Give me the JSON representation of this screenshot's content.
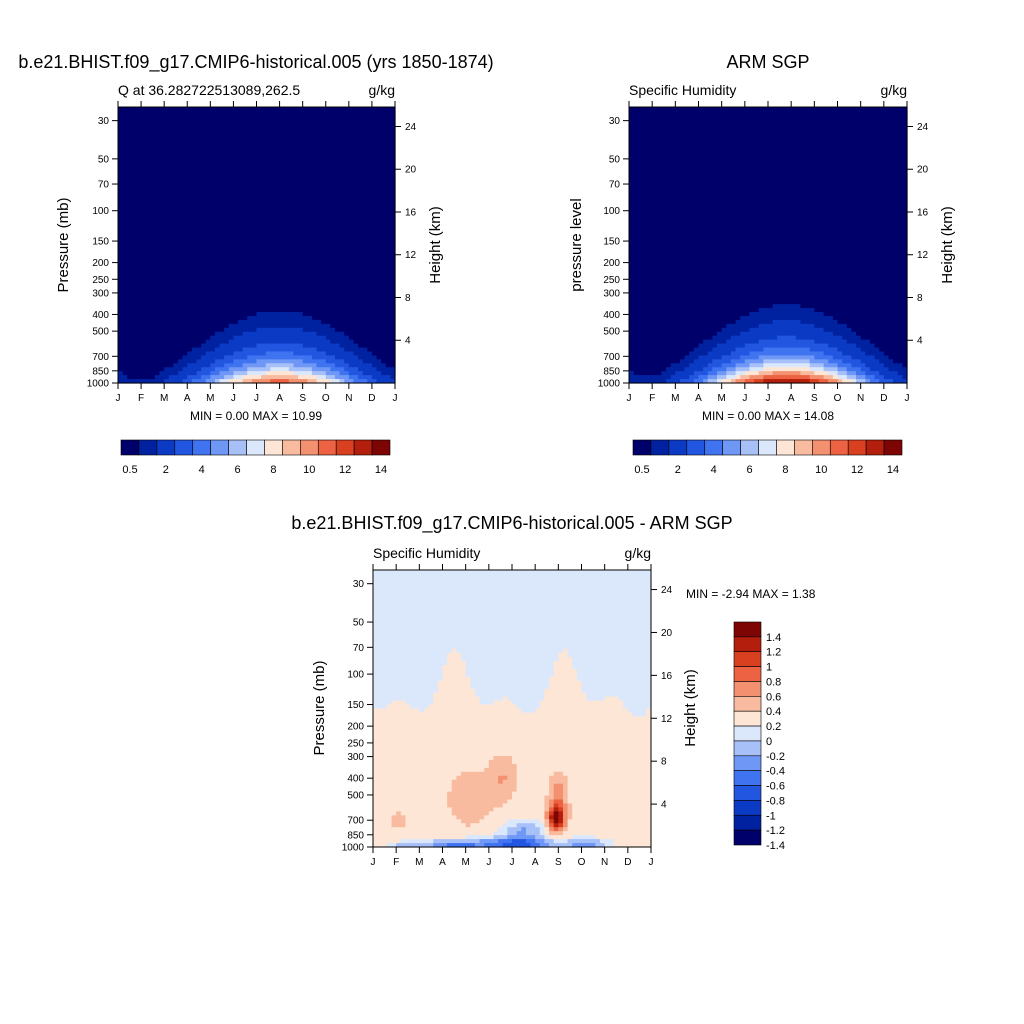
{
  "colors": {
    "model_obs_scale": [
      "#00006b",
      "#0022a0",
      "#0b3bc4",
      "#2356e0",
      "#3f73f0",
      "#6f97f6",
      "#a8c0f8",
      "#dbe8fb",
      "#fde6d6",
      "#f9bb9f",
      "#f3906f",
      "#ec6242",
      "#d9401f",
      "#b31f0c",
      "#7d0503"
    ],
    "diff_scale": [
      "#00006b",
      "#0022a0",
      "#0b3bc4",
      "#2356e0",
      "#3f73f0",
      "#6f97f6",
      "#a8c0f8",
      "#dbe8fb",
      "#fde6d6",
      "#f9bb9f",
      "#f3906f",
      "#ec6242",
      "#d9401f",
      "#b31f0c",
      "#7d0503"
    ]
  },
  "chart_data": [
    {
      "type": "heatmap",
      "title": "b.e21.BHIST.f09_g17.CMIP6-historical.005 (yrs 1850-1874)",
      "subtitle_left": "Q at 36.282722513089,262.5",
      "units": "g/kg",
      "ylabel": "Pressure (mb)",
      "ylabel_right": "Height (km)",
      "x_ticks": [
        "J",
        "F",
        "M",
        "A",
        "M",
        "J",
        "J",
        "A",
        "S",
        "O",
        "N",
        "D",
        "J"
      ],
      "pressure_ticks": [
        "30",
        "50",
        "70",
        "100",
        "150",
        "200",
        "250",
        "300",
        "400",
        "500",
        "700",
        "850",
        "1000"
      ],
      "height_ticks": [
        "24",
        "20",
        "16",
        "12",
        "8",
        "4"
      ],
      "minmax": "MIN =   0.00 MAX =   10.99",
      "field": {
        "peak": 10.99,
        "peak_month": 7.0
      },
      "colorbar_labels": [
        "0.5",
        "2",
        "4",
        "6",
        "8",
        "10",
        "12",
        "14"
      ]
    },
    {
      "type": "heatmap",
      "title": "ARM SGP",
      "subtitle_left": "Specific Humidity",
      "units": "g/kg",
      "ylabel": "pressure level",
      "ylabel_right": "Height (km)",
      "x_ticks": [
        "J",
        "F",
        "M",
        "A",
        "M",
        "J",
        "J",
        "A",
        "S",
        "O",
        "N",
        "D",
        "J"
      ],
      "pressure_ticks": [
        "30",
        "50",
        "70",
        "100",
        "150",
        "200",
        "250",
        "300",
        "400",
        "500",
        "700",
        "850",
        "1000"
      ],
      "height_ticks": [
        "24",
        "20",
        "16",
        "12",
        "8",
        "4"
      ],
      "minmax": "MIN =   0.00 MAX =   14.08",
      "field": {
        "peak": 14.08,
        "peak_month": 6.8
      },
      "colorbar_labels": [
        "0.5",
        "2",
        "4",
        "6",
        "8",
        "10",
        "12",
        "14"
      ]
    },
    {
      "type": "heatmap",
      "title": "b.e21.BHIST.f09_g17.CMIP6-historical.005 - ARM SGP",
      "subtitle_left": "Specific Humidity",
      "units": "g/kg",
      "ylabel": "Pressure (mb)",
      "ylabel_right": "Height (km)",
      "x_ticks": [
        "J",
        "F",
        "M",
        "A",
        "M",
        "J",
        "J",
        "A",
        "S",
        "O",
        "N",
        "D",
        "J"
      ],
      "pressure_ticks": [
        "30",
        "50",
        "70",
        "100",
        "150",
        "200",
        "250",
        "300",
        "400",
        "500",
        "700",
        "850",
        "1000"
      ],
      "height_ticks": [
        "24",
        "20",
        "16",
        "12",
        "8",
        "4"
      ],
      "minmax": "MIN =  -2.94 MAX =   1.38",
      "colorbar_labels": [
        "1.4",
        "1.2",
        "1",
        "0.8",
        "0.6",
        "0.4",
        "0.2",
        "0",
        "-0.2",
        "-0.4",
        "-0.6",
        "-0.8",
        "-1",
        "-1.2",
        "-1.4"
      ]
    }
  ]
}
